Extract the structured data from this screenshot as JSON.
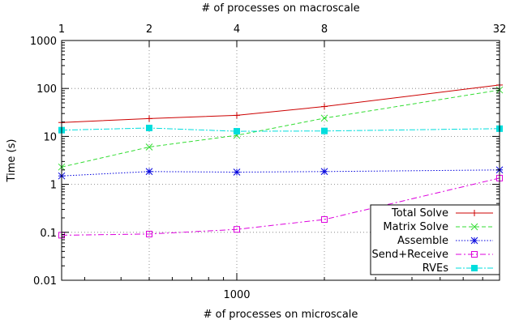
{
  "chart_data": {
    "type": "line",
    "title": "",
    "xlabel": "# of processes on microscale",
    "x2label": "# of processes on macroscale",
    "ylabel": "Time (s)",
    "x_scale": "log",
    "y_scale": "log",
    "xlim": [
      250,
      8000
    ],
    "ylim": [
      0.01,
      1000
    ],
    "x_tick_labels": [
      {
        "value": 1000,
        "label": "1000"
      }
    ],
    "x2_ticks": [
      {
        "value": 250,
        "label": "1"
      },
      {
        "value": 500,
        "label": "2"
      },
      {
        "value": 1000,
        "label": "4"
      },
      {
        "value": 2000,
        "label": "8"
      },
      {
        "value": 8000,
        "label": "32"
      }
    ],
    "y_ticks": [
      {
        "value": 0.01,
        "label": "0.01"
      },
      {
        "value": 0.1,
        "label": "0.1"
      },
      {
        "value": 1,
        "label": "1"
      },
      {
        "value": 10,
        "label": "10"
      },
      {
        "value": 100,
        "label": "100"
      },
      {
        "value": 1000,
        "label": "1000"
      }
    ],
    "grid": true,
    "legend_position": "bottom-right",
    "x": [
      250,
      500,
      1000,
      2000,
      8000
    ],
    "series": [
      {
        "name": "Total Solve",
        "color": "#cc0000",
        "marker": "plus",
        "dash": "",
        "values": [
          19.5,
          23.5,
          27.5,
          42,
          118
        ]
      },
      {
        "name": "Matrix Solve",
        "color": "#33dd33",
        "marker": "cross",
        "dash": "5,3",
        "values": [
          2.3,
          6,
          10.5,
          24,
          93
        ]
      },
      {
        "name": "Assemble",
        "color": "#0000dd",
        "marker": "star",
        "dash": "1.5,2",
        "values": [
          1.5,
          1.85,
          1.8,
          1.85,
          2.0
        ]
      },
      {
        "name": "Send+Receive",
        "color": "#dd00dd",
        "marker": "square-open",
        "dash": "7,3,2,3",
        "values": [
          0.087,
          0.092,
          0.115,
          0.185,
          1.35
        ]
      },
      {
        "name": "RVEs",
        "color": "#00dddd",
        "marker": "square-filled",
        "dash": "7,2,2,2",
        "values": [
          13.5,
          15,
          12.8,
          13,
          14.5
        ]
      }
    ]
  }
}
